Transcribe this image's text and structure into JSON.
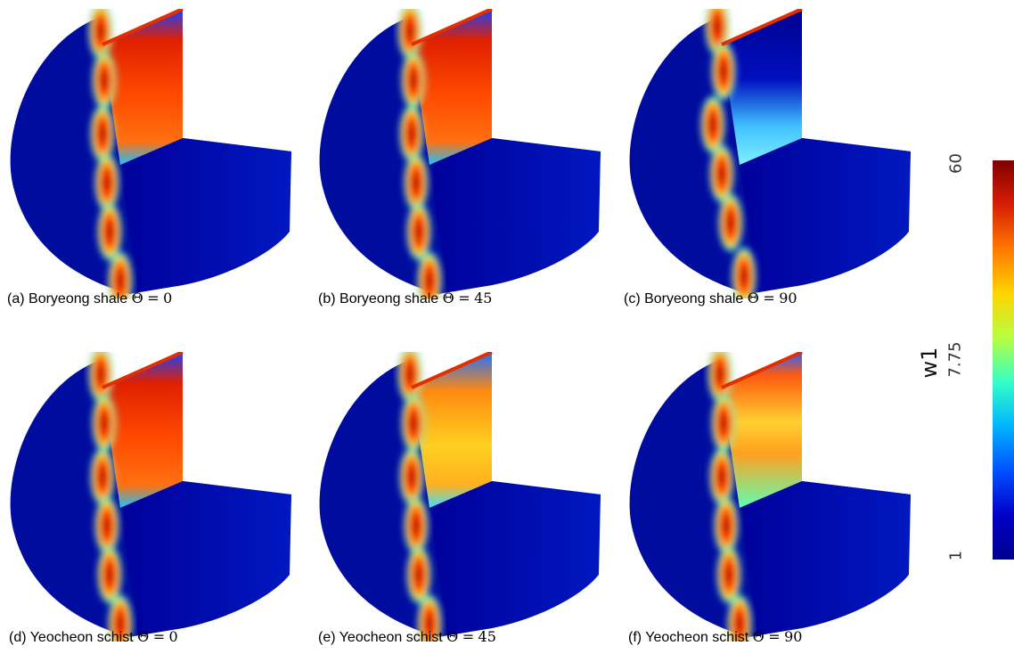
{
  "figures": [
    {
      "caption_prefix": "(a)",
      "material": "Boryeong shale",
      "theta_symbol": "Θ",
      "eq": "=",
      "angle": "0",
      "pattern": "fracture-vertical",
      "field": "high"
    },
    {
      "caption_prefix": "(b)",
      "material": "Boryeong shale",
      "theta_symbol": "Θ",
      "eq": "=",
      "angle": "45",
      "pattern": "fracture-vertical",
      "field": "high"
    },
    {
      "caption_prefix": "(c)",
      "material": "Boryeong shale",
      "theta_symbol": "Θ",
      "eq": "=",
      "angle": "90",
      "pattern": "fracture-diagonal",
      "field": "low"
    },
    {
      "caption_prefix": "(d)",
      "material": "Yeocheon schist",
      "theta_symbol": "Θ",
      "eq": "=",
      "angle": "0",
      "pattern": "fracture-vertical",
      "field": "high"
    },
    {
      "caption_prefix": "(e)",
      "material": "Yeocheon schist",
      "theta_symbol": "Θ",
      "eq": "=",
      "angle": "45",
      "pattern": "fracture-vertical",
      "field": "medium"
    },
    {
      "caption_prefix": "(f)",
      "material": "Yeocheon schist",
      "theta_symbol": "Θ",
      "eq": "=",
      "angle": "90",
      "pattern": "fracture-vertical",
      "field": "high-x"
    }
  ],
  "colorbar": {
    "label": "w1",
    "ticks": [
      "60",
      "7.75",
      "1"
    ],
    "colors": [
      "#800000",
      "#d81e05",
      "#ff7a00",
      "#ffd400",
      "#b6ff40",
      "#34ffc8",
      "#00b4ff",
      "#0050ff",
      "#0000c8",
      "#00008f"
    ]
  }
}
